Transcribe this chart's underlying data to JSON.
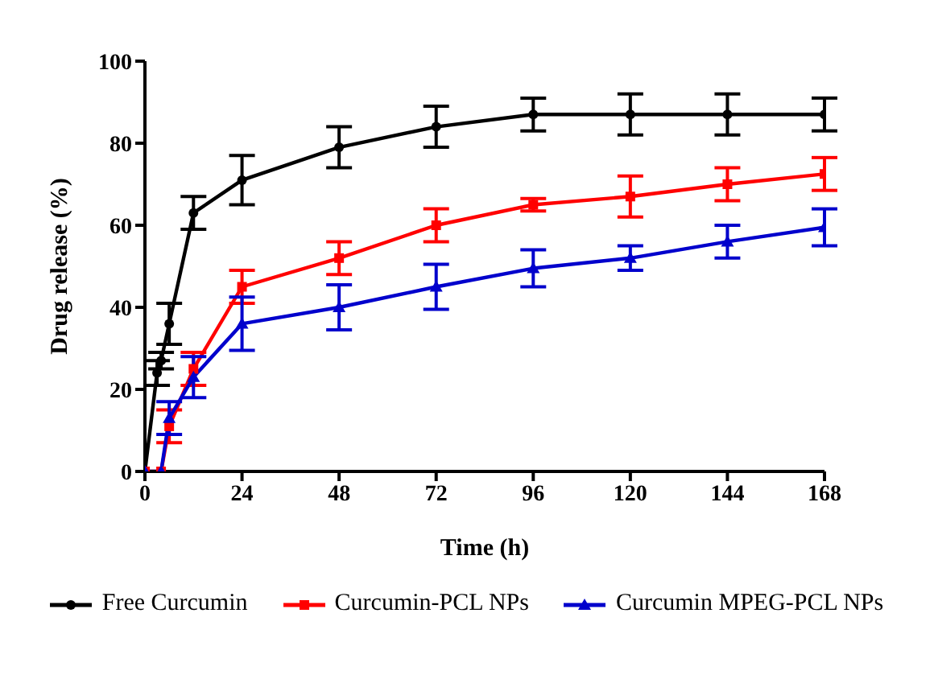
{
  "chart_data": {
    "type": "line",
    "xlabel": "Time (h)",
    "ylabel": "Drug release (%)",
    "xlim": [
      0,
      168
    ],
    "xticks": [
      0,
      24,
      48,
      72,
      96,
      120,
      144,
      168
    ],
    "ylim": [
      0,
      100
    ],
    "yticks": [
      0,
      20,
      40,
      60,
      80,
      100
    ],
    "grid": false,
    "legend": "bottom",
    "line_style": "solid",
    "series": [
      {
        "name": "Free Curcumin",
        "color": "#000000",
        "marker": "circle",
        "x": [
          0,
          3,
          4,
          6,
          12,
          24,
          48,
          72,
          96,
          120,
          144,
          168
        ],
        "values": [
          0,
          24,
          27,
          36,
          63,
          71,
          79,
          84,
          87,
          87,
          87,
          87
        ],
        "errors": [
          null,
          3,
          2,
          5,
          4,
          6,
          5,
          5,
          4,
          5,
          5,
          4
        ]
      },
      {
        "name": "Curcumin-PCL NPs",
        "color": "#ff0000",
        "marker": "square",
        "x": [
          0,
          4,
          6,
          12,
          24,
          48,
          72,
          96,
          120,
          144,
          168
        ],
        "values": [
          0,
          0,
          11,
          25,
          45,
          52,
          60,
          65,
          67,
          70,
          72.5
        ],
        "errors": [
          null,
          null,
          4,
          4,
          4,
          4,
          4,
          1.5,
          5,
          4,
          4
        ]
      },
      {
        "name": "Curcumin MPEG-PCL NPs",
        "color": "#0000cc",
        "marker": "triangle",
        "x": [
          0,
          4,
          6,
          12,
          24,
          48,
          72,
          96,
          120,
          144,
          168
        ],
        "values": [
          0,
          0,
          13,
          23,
          36,
          40,
          45,
          49.5,
          52,
          56,
          59.5
        ],
        "errors": [
          null,
          null,
          4,
          5,
          6.5,
          5.5,
          5.5,
          4.5,
          3,
          4,
          4.5
        ]
      }
    ]
  }
}
